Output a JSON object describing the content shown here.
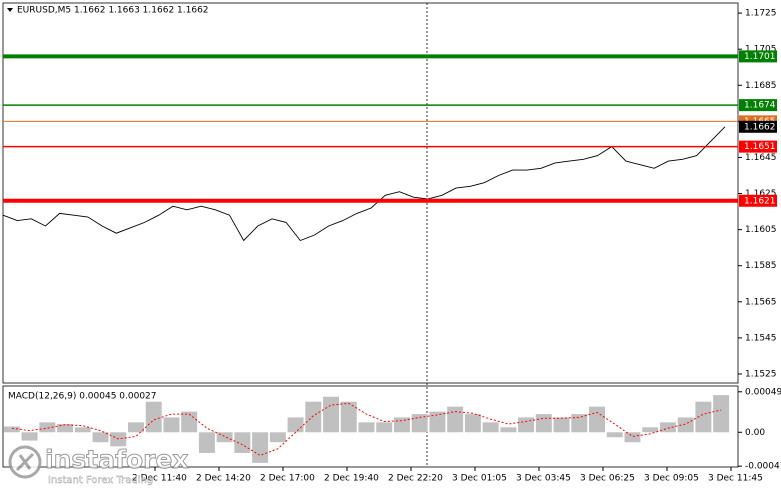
{
  "header": "EURUSD,M5  1.1662 1.1663 1.1662 1.1662",
  "watermark": {
    "brand": "instaforex",
    "tagline": "Instant Forex Trading"
  },
  "time_labels": [
    "2 Dec 11:40",
    "2 Dec 14:20",
    "2 Dec 17:00",
    "2 Dec 19:40",
    "2 Dec 22:20",
    "3 Dec 01:05",
    "3 Dec 03:45",
    "3 Dec 06:25",
    "3 Dec 09:05",
    "3 Dec 11:45"
  ],
  "chart_data": [
    {
      "type": "line",
      "color": "#000000",
      "values": [
        1.1613,
        1.161,
        1.1611,
        1.1607,
        1.1614,
        1.1613,
        1.1612,
        1.1607,
        1.1603,
        1.1606,
        1.1609,
        1.1613,
        1.1618,
        1.1616,
        1.1618,
        1.1616,
        1.1613,
        1.1599,
        1.1607,
        1.1611,
        1.1609,
        1.1599,
        1.1602,
        1.1607,
        1.161,
        1.1614,
        1.1617,
        1.1624,
        1.1626,
        1.1623,
        1.1622,
        1.1624,
        1.1628,
        1.1629,
        1.1631,
        1.1635,
        1.1638,
        1.1638,
        1.1639,
        1.1642,
        1.1643,
        1.1644,
        1.1646,
        1.1651,
        1.1643,
        1.1641,
        1.1639,
        1.1643,
        1.1644,
        1.1646,
        1.1654,
        1.1662
      ],
      "ylim": [
        1.152,
        1.17306
      ],
      "yticks": [
        1.1725,
        1.1705,
        1.1685,
        1.1665,
        1.1645,
        1.1625,
        1.1605,
        1.1585,
        1.1565,
        1.1545,
        1.1525
      ],
      "levels": [
        {
          "value": 1.1701,
          "color": "#008000",
          "width": 4
        },
        {
          "value": 1.1674,
          "color": "#008000",
          "width": 1.5
        },
        {
          "value": 1.1665,
          "color": "#e07020",
          "width": 1
        },
        {
          "value": 1.1651,
          "color": "#ff0000",
          "width": 1.5
        },
        {
          "value": 1.1621,
          "color": "#ff0000",
          "width": 4
        }
      ],
      "current_price": 1.1662
    },
    {
      "type": "macd",
      "title": "MACD(12,26,9) 0.00045 0.00027",
      "histogram": [
        7e-05,
        -0.0001,
        0.00012,
        0.0001,
        6e-05,
        -0.00012,
        -0.00017,
        0.00012,
        0.00037,
        0.00018,
        0.00025,
        -0.00025,
        -0.00012,
        -0.00025,
        -0.00037,
        -0.00012,
        0.00018,
        0.00037,
        0.00043,
        0.00037,
        0.00012,
        0.00012,
        0.00018,
        0.00022,
        0.00025,
        0.00031,
        0.00022,
        0.00012,
        6e-05,
        0.00018,
        0.00022,
        0.00018,
        0.00022,
        0.00031,
        -6e-05,
        -0.00012,
        6e-05,
        0.00012,
        0.00018,
        0.00037,
        0.00045
      ],
      "signal": [
        5e-05,
        2e-05,
        5e-05,
        9e-05,
        8e-05,
        2e-05,
        -8e-05,
        -5e-05,
        0.00015,
        0.00022,
        0.00022,
        5e-05,
        -5e-05,
        -0.00015,
        -0.00028,
        -0.0002,
        0,
        0.0002,
        0.00033,
        0.00035,
        0.00022,
        0.00013,
        0.00014,
        0.00018,
        0.00021,
        0.00025,
        0.00023,
        0.00016,
        0.0001,
        0.00013,
        0.00017,
        0.00017,
        0.00018,
        0.00024,
        0.0001,
        -5e-05,
        -2e-05,
        5e-05,
        0.0001,
        0.00022,
        0.00027
      ],
      "histogram_color": "#c0c0c0",
      "signal_color": "#ff0000",
      "ylim": [
        -0.00042,
        0.00056
      ],
      "yticks": [
        0.00049,
        {
          "value": 0,
          "label": "0.00"
        },
        -0.00041
      ]
    }
  ]
}
